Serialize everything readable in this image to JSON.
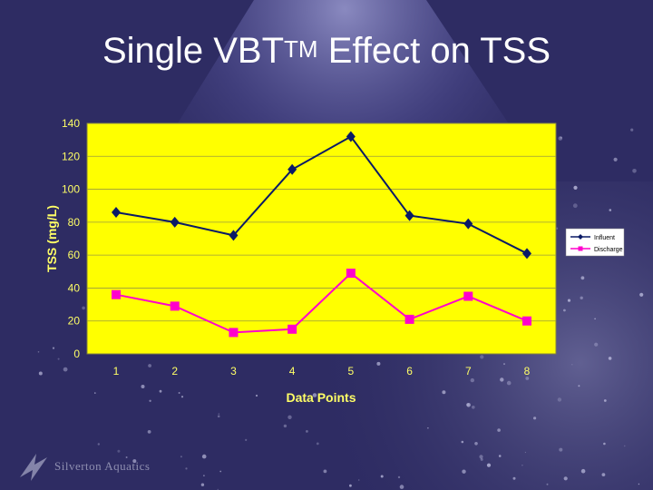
{
  "slide": {
    "title_main": "Single VBT",
    "title_tm": "TM",
    "title_rest": " Effect on TSS",
    "footer_text": "Silverton Aquatics"
  },
  "colors": {
    "background": "#2e2c63",
    "plot_area": "#ffff00",
    "influent": "#0a1a66",
    "discharge": "#ff00cc",
    "axis_text": "#ffff66"
  },
  "chart_data": {
    "type": "line",
    "title": "",
    "xlabel": "Data Points",
    "ylabel": "TSS (mg/L)",
    "categories": [
      "1",
      "2",
      "3",
      "4",
      "5",
      "6",
      "7",
      "8"
    ],
    "ylim": [
      0,
      140
    ],
    "yticks": [
      "0",
      "20",
      "40",
      "60",
      "80",
      "100",
      "120",
      "140"
    ],
    "grid": true,
    "legend_position": "right",
    "series": [
      {
        "name": "Influent",
        "marker": "diamond",
        "values": [
          86,
          80,
          72,
          112,
          132,
          84,
          79,
          61
        ]
      },
      {
        "name": "Discharge",
        "marker": "square",
        "values": [
          36,
          29,
          13,
          15,
          49,
          21,
          35,
          20
        ]
      }
    ]
  }
}
